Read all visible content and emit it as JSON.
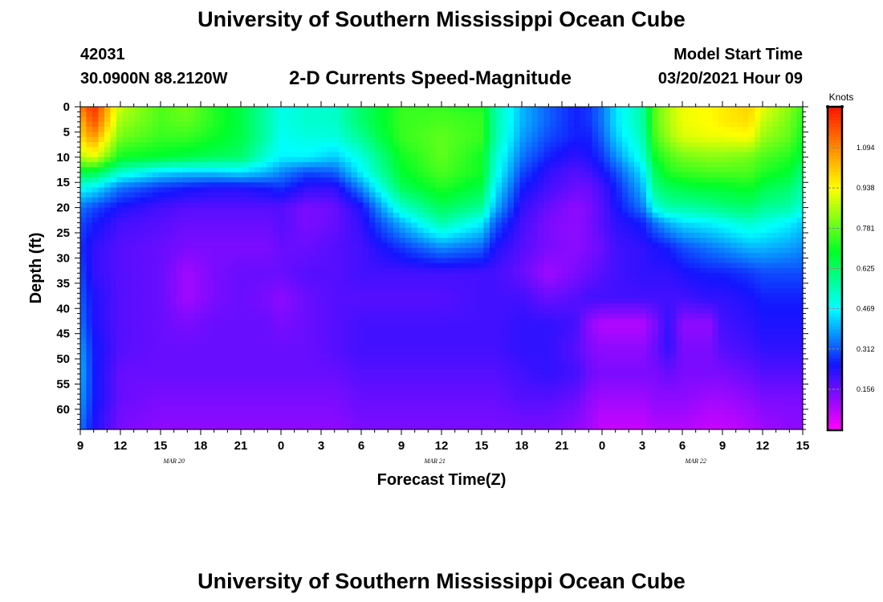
{
  "header": {
    "title": "University of Southern Mississippi Ocean Cube",
    "station_id": "42031",
    "location": "30.0900N 88.2120W",
    "product": "2-D Currents Speed-Magnitude",
    "model_start_label": "Model Start Time",
    "model_start_value": "03/20/2021 Hour 09"
  },
  "footer": {
    "title": "University of Southern Mississippi Ocean Cube"
  },
  "chart_data": {
    "type": "heatmap",
    "xlabel": "Forecast Time(Z)",
    "ylabel": "Depth (ft)",
    "x_ticks": [
      "9",
      "12",
      "15",
      "18",
      "21",
      "0",
      "3",
      "6",
      "9",
      "12",
      "15",
      "18",
      "21",
      "0",
      "3",
      "6",
      "9",
      "12",
      "15"
    ],
    "x_tick_hours": [
      0,
      3,
      6,
      9,
      12,
      15,
      18,
      21,
      24,
      27,
      30,
      33,
      36,
      39,
      42,
      45,
      48,
      51,
      54
    ],
    "x_range_hours": [
      0,
      54
    ],
    "date_labels": [
      {
        "text": "MAR  20",
        "hour": 7
      },
      {
        "text": "MAR  21",
        "hour": 26.5
      },
      {
        "text": "MAR  22",
        "hour": 46
      }
    ],
    "y_ticks": [
      0,
      5,
      10,
      15,
      20,
      25,
      30,
      35,
      40,
      45,
      50,
      55,
      60
    ],
    "y_range_ft": [
      0,
      64
    ],
    "colorbar": {
      "title": "Knots",
      "ticks": [
        1.094,
        0.938,
        0.781,
        0.625,
        0.469,
        0.312,
        0.156
      ],
      "ticks_text": [
        "1.094",
        "0.938",
        "0.781",
        "0.625",
        "0.469",
        "0.312",
        "0.156"
      ],
      "range": [
        0.0,
        1.25
      ]
    },
    "hours": [
      0,
      1,
      3,
      6,
      8,
      10,
      12,
      14,
      15,
      17,
      19,
      21,
      24,
      27,
      30,
      31,
      33,
      35,
      37,
      38,
      39,
      40,
      42,
      43,
      44,
      45,
      47,
      48,
      50,
      51,
      53,
      54
    ],
    "depths": [
      0,
      3,
      6,
      10,
      13,
      16,
      20,
      23,
      28,
      33,
      38,
      43,
      48,
      53,
      58,
      64
    ],
    "speed_knots": [
      [
        1.1,
        1.22,
        0.88,
        0.76,
        0.8,
        0.72,
        0.66,
        0.55,
        0.49,
        0.52,
        0.52,
        0.62,
        0.74,
        0.74,
        0.72,
        0.56,
        0.4,
        0.32,
        0.26,
        0.28,
        0.34,
        0.44,
        0.56,
        0.78,
        0.86,
        0.92,
        0.94,
        0.96,
        1.0,
        0.92,
        0.82,
        0.74
      ],
      [
        1.02,
        1.18,
        0.84,
        0.76,
        0.78,
        0.72,
        0.66,
        0.55,
        0.49,
        0.52,
        0.52,
        0.62,
        0.74,
        0.76,
        0.74,
        0.56,
        0.4,
        0.32,
        0.26,
        0.28,
        0.34,
        0.44,
        0.56,
        0.78,
        0.86,
        0.92,
        0.94,
        0.96,
        0.98,
        0.88,
        0.8,
        0.72
      ],
      [
        0.98,
        1.08,
        0.8,
        0.74,
        0.74,
        0.7,
        0.66,
        0.55,
        0.48,
        0.5,
        0.5,
        0.58,
        0.74,
        0.78,
        0.74,
        0.56,
        0.38,
        0.3,
        0.26,
        0.26,
        0.32,
        0.42,
        0.54,
        0.76,
        0.84,
        0.9,
        0.92,
        0.92,
        0.94,
        0.84,
        0.78,
        0.7
      ],
      [
        0.86,
        0.92,
        0.7,
        0.68,
        0.66,
        0.64,
        0.62,
        0.5,
        0.46,
        0.46,
        0.42,
        0.5,
        0.7,
        0.78,
        0.7,
        0.52,
        0.34,
        0.26,
        0.22,
        0.24,
        0.28,
        0.36,
        0.5,
        0.7,
        0.76,
        0.8,
        0.82,
        0.82,
        0.8,
        0.76,
        0.72,
        0.66
      ],
      [
        0.66,
        0.66,
        0.52,
        0.44,
        0.42,
        0.42,
        0.44,
        0.4,
        0.36,
        0.3,
        0.32,
        0.46,
        0.68,
        0.76,
        0.7,
        0.5,
        0.3,
        0.22,
        0.18,
        0.2,
        0.24,
        0.3,
        0.44,
        0.64,
        0.72,
        0.74,
        0.76,
        0.76,
        0.76,
        0.72,
        0.68,
        0.6
      ],
      [
        0.48,
        0.46,
        0.34,
        0.28,
        0.26,
        0.24,
        0.24,
        0.26,
        0.28,
        0.22,
        0.22,
        0.36,
        0.64,
        0.72,
        0.66,
        0.46,
        0.26,
        0.2,
        0.16,
        0.16,
        0.2,
        0.26,
        0.4,
        0.6,
        0.64,
        0.66,
        0.68,
        0.68,
        0.7,
        0.66,
        0.62,
        0.56
      ],
      [
        0.34,
        0.3,
        0.24,
        0.2,
        0.18,
        0.18,
        0.18,
        0.18,
        0.18,
        0.14,
        0.16,
        0.24,
        0.52,
        0.64,
        0.58,
        0.4,
        0.22,
        0.16,
        0.12,
        0.14,
        0.18,
        0.24,
        0.34,
        0.5,
        0.56,
        0.56,
        0.58,
        0.6,
        0.62,
        0.58,
        0.56,
        0.5
      ],
      [
        0.3,
        0.26,
        0.2,
        0.18,
        0.16,
        0.16,
        0.16,
        0.16,
        0.18,
        0.14,
        0.16,
        0.22,
        0.4,
        0.56,
        0.46,
        0.32,
        0.2,
        0.14,
        0.12,
        0.14,
        0.18,
        0.22,
        0.26,
        0.34,
        0.4,
        0.44,
        0.46,
        0.48,
        0.52,
        0.5,
        0.46,
        0.42
      ],
      [
        0.28,
        0.22,
        0.18,
        0.16,
        0.14,
        0.14,
        0.14,
        0.14,
        0.16,
        0.16,
        0.18,
        0.2,
        0.28,
        0.36,
        0.32,
        0.24,
        0.18,
        0.14,
        0.12,
        0.14,
        0.16,
        0.2,
        0.22,
        0.24,
        0.26,
        0.3,
        0.34,
        0.36,
        0.4,
        0.4,
        0.38,
        0.36
      ],
      [
        0.3,
        0.22,
        0.18,
        0.16,
        0.1,
        0.14,
        0.16,
        0.16,
        0.16,
        0.18,
        0.18,
        0.2,
        0.2,
        0.2,
        0.2,
        0.2,
        0.16,
        0.1,
        0.14,
        0.16,
        0.18,
        0.2,
        0.22,
        0.22,
        0.22,
        0.24,
        0.26,
        0.26,
        0.28,
        0.3,
        0.3,
        0.3
      ],
      [
        0.32,
        0.24,
        0.18,
        0.16,
        0.1,
        0.14,
        0.16,
        0.14,
        0.12,
        0.16,
        0.18,
        0.18,
        0.18,
        0.18,
        0.2,
        0.2,
        0.2,
        0.16,
        0.18,
        0.2,
        0.2,
        0.2,
        0.2,
        0.2,
        0.2,
        0.2,
        0.22,
        0.22,
        0.24,
        0.26,
        0.26,
        0.26
      ],
      [
        0.34,
        0.24,
        0.18,
        0.16,
        0.14,
        0.16,
        0.16,
        0.16,
        0.14,
        0.16,
        0.18,
        0.2,
        0.2,
        0.2,
        0.2,
        0.2,
        0.22,
        0.22,
        0.2,
        0.12,
        0.08,
        0.08,
        0.08,
        0.14,
        0.22,
        0.12,
        0.12,
        0.2,
        0.22,
        0.24,
        0.24,
        0.24
      ],
      [
        0.38,
        0.26,
        0.18,
        0.16,
        0.16,
        0.16,
        0.16,
        0.16,
        0.16,
        0.16,
        0.18,
        0.2,
        0.2,
        0.2,
        0.2,
        0.2,
        0.22,
        0.22,
        0.18,
        0.14,
        0.12,
        0.12,
        0.12,
        0.16,
        0.22,
        0.14,
        0.14,
        0.18,
        0.2,
        0.22,
        0.22,
        0.22
      ],
      [
        0.4,
        0.26,
        0.16,
        0.16,
        0.16,
        0.16,
        0.16,
        0.16,
        0.16,
        0.16,
        0.16,
        0.18,
        0.18,
        0.18,
        0.18,
        0.18,
        0.2,
        0.22,
        0.2,
        0.16,
        0.14,
        0.14,
        0.14,
        0.14,
        0.16,
        0.14,
        0.14,
        0.14,
        0.16,
        0.18,
        0.18,
        0.18
      ],
      [
        0.38,
        0.26,
        0.16,
        0.14,
        0.14,
        0.14,
        0.14,
        0.14,
        0.14,
        0.14,
        0.14,
        0.16,
        0.16,
        0.16,
        0.16,
        0.16,
        0.18,
        0.18,
        0.16,
        0.12,
        0.1,
        0.1,
        0.1,
        0.12,
        0.12,
        0.12,
        0.1,
        0.1,
        0.12,
        0.14,
        0.14,
        0.14
      ],
      [
        0.34,
        0.24,
        0.14,
        0.12,
        0.12,
        0.12,
        0.12,
        0.12,
        0.12,
        0.12,
        0.12,
        0.14,
        0.14,
        0.14,
        0.14,
        0.14,
        0.14,
        0.14,
        0.12,
        0.1,
        0.06,
        0.06,
        0.06,
        0.08,
        0.08,
        0.08,
        0.06,
        0.06,
        0.08,
        0.1,
        0.12,
        0.12
      ]
    ]
  }
}
